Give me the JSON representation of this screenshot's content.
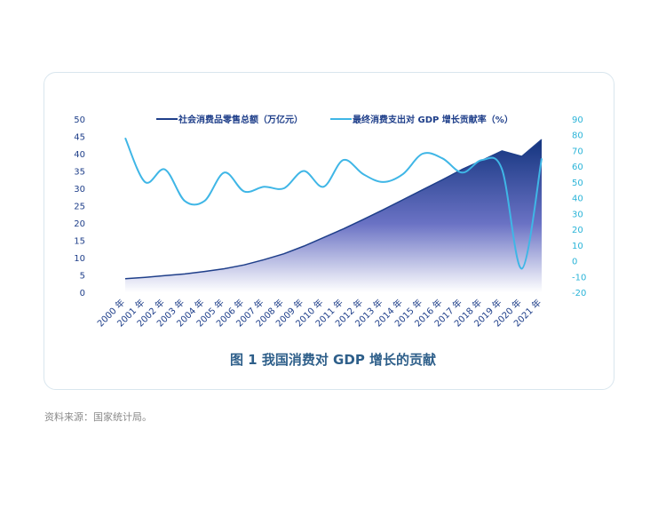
{
  "chart_data": {
    "type": "area+line",
    "categories": [
      "2000 年",
      "2001 年",
      "2002 年",
      "2003 年",
      "2004 年",
      "2005 年",
      "2006 年",
      "2007 年",
      "2008 年",
      "2009 年",
      "2010 年",
      "2011 年",
      "2012 年",
      "2013 年",
      "2014 年",
      "2015 年",
      "2016 年",
      "2017 年",
      "2018 年",
      "2019 年",
      "2020 年",
      "2021 年"
    ],
    "series": [
      {
        "name": "社会消费品零售总额（万亿元）",
        "axis": "left",
        "render": "area",
        "color": "#1f3f8a",
        "values": [
          3.9,
          4.3,
          4.8,
          5.3,
          6.0,
          6.8,
          7.9,
          9.4,
          11.1,
          13.3,
          15.8,
          18.3,
          21.0,
          23.8,
          26.7,
          29.6,
          32.5,
          35.5,
          38.1,
          40.8,
          39.2,
          44.1
        ]
      },
      {
        "name": "最终消费支出对 GDP 增长贡献率（%）",
        "axis": "right",
        "render": "line",
        "color": "#3fb6e6",
        "values": [
          78,
          50,
          58,
          38,
          38,
          56,
          44,
          47,
          46,
          57,
          47,
          64,
          55,
          50,
          55,
          68,
          65,
          56,
          64,
          58,
          -5,
          65
        ]
      }
    ],
    "yleft": {
      "min": 0,
      "max": 50,
      "ticks": [
        0,
        5,
        10,
        15,
        20,
        25,
        30,
        35,
        40,
        45,
        50
      ]
    },
    "yright": {
      "min": -20,
      "max": 90,
      "ticks": [
        -20,
        -10,
        0,
        10,
        20,
        30,
        40,
        50,
        60,
        70,
        80,
        90
      ]
    },
    "legend_position": "top",
    "title": "图 1  我国消费对 GDP 增长的贡献"
  },
  "source_note": "资料来源：国家统计局。",
  "colors": {
    "left_axis": "#1f3f8a",
    "right_axis": "#2bb4d8",
    "caption": "#2e5f8a"
  }
}
